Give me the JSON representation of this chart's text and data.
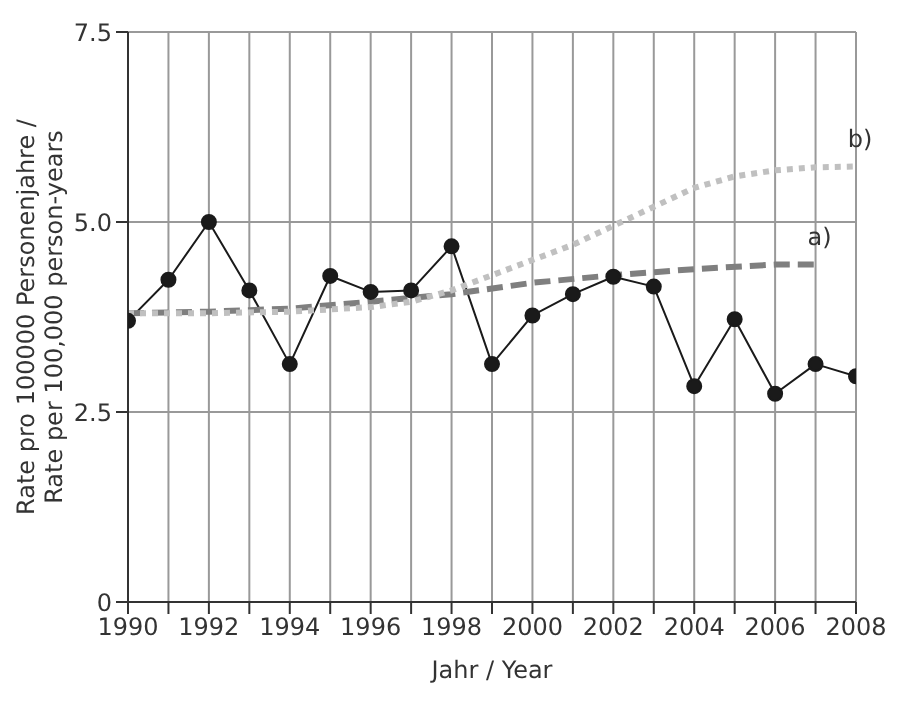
{
  "chart_data": {
    "type": "line",
    "xlabel": "Jahr / Year",
    "ylabel": "Rate pro 100000 Personenjahre /\nRate per 100,000 person-years",
    "xlim": [
      1990,
      2008
    ],
    "xticks": [
      1990,
      {
        "value": 1991,
        "label": null
      },
      1992,
      {
        "value": 1993,
        "label": null
      },
      1994,
      {
        "value": 1995,
        "label": null
      },
      1996,
      {
        "value": 1997,
        "label": null
      },
      1998,
      {
        "value": 1999,
        "label": null
      },
      2000,
      {
        "value": 2001,
        "label": null
      },
      2002,
      {
        "value": 2003,
        "label": null
      },
      2004,
      {
        "value": 2005,
        "label": null
      },
      2006,
      {
        "value": 2007,
        "label": null
      },
      2008
    ],
    "ylim": [
      0,
      7.5
    ],
    "yticks": [
      0,
      2.5,
      {
        "value": 5,
        "label": "5.0"
      },
      7.5
    ],
    "grid": true,
    "series": [
      {
        "color": "#1a1a1a",
        "marker": "circle",
        "line_style": "solid",
        "x": [
          1990,
          1991,
          1992,
          1993,
          1994,
          1995,
          1996,
          1997,
          1998,
          1999,
          2000,
          2001,
          2002,
          2003,
          2004,
          2005,
          2006,
          2007,
          2008
        ],
        "values": [
          3.7,
          4.24,
          5.0,
          4.1,
          3.13,
          4.29,
          4.08,
          4.1,
          4.68,
          3.13,
          3.77,
          4.05,
          4.28,
          4.15,
          2.84,
          3.72,
          2.74,
          3.13,
          2.97
        ]
      },
      {
        "name": "a)",
        "color": "#7f7f7f",
        "marker": "none",
        "line_style": "dashed",
        "x": [
          1990,
          1992,
          1994,
          1996,
          1998,
          2000,
          2002,
          2004,
          2006,
          2007
        ],
        "values": [
          3.8,
          3.82,
          3.86,
          3.95,
          4.05,
          4.2,
          4.3,
          4.38,
          4.44,
          4.44
        ]
      },
      {
        "name": "b)",
        "color": "#c0c0c0",
        "marker": "none",
        "line_style": "dotted",
        "x": [
          1990,
          1992,
          1994,
          1996,
          1997,
          1998,
          1999,
          2000,
          2001,
          2002,
          2003,
          2004,
          2005,
          2006,
          2007,
          2008
        ],
        "values": [
          3.8,
          3.8,
          3.82,
          3.88,
          3.95,
          4.1,
          4.3,
          4.5,
          4.7,
          4.95,
          5.2,
          5.45,
          5.6,
          5.68,
          5.72,
          5.73
        ]
      }
    ]
  }
}
